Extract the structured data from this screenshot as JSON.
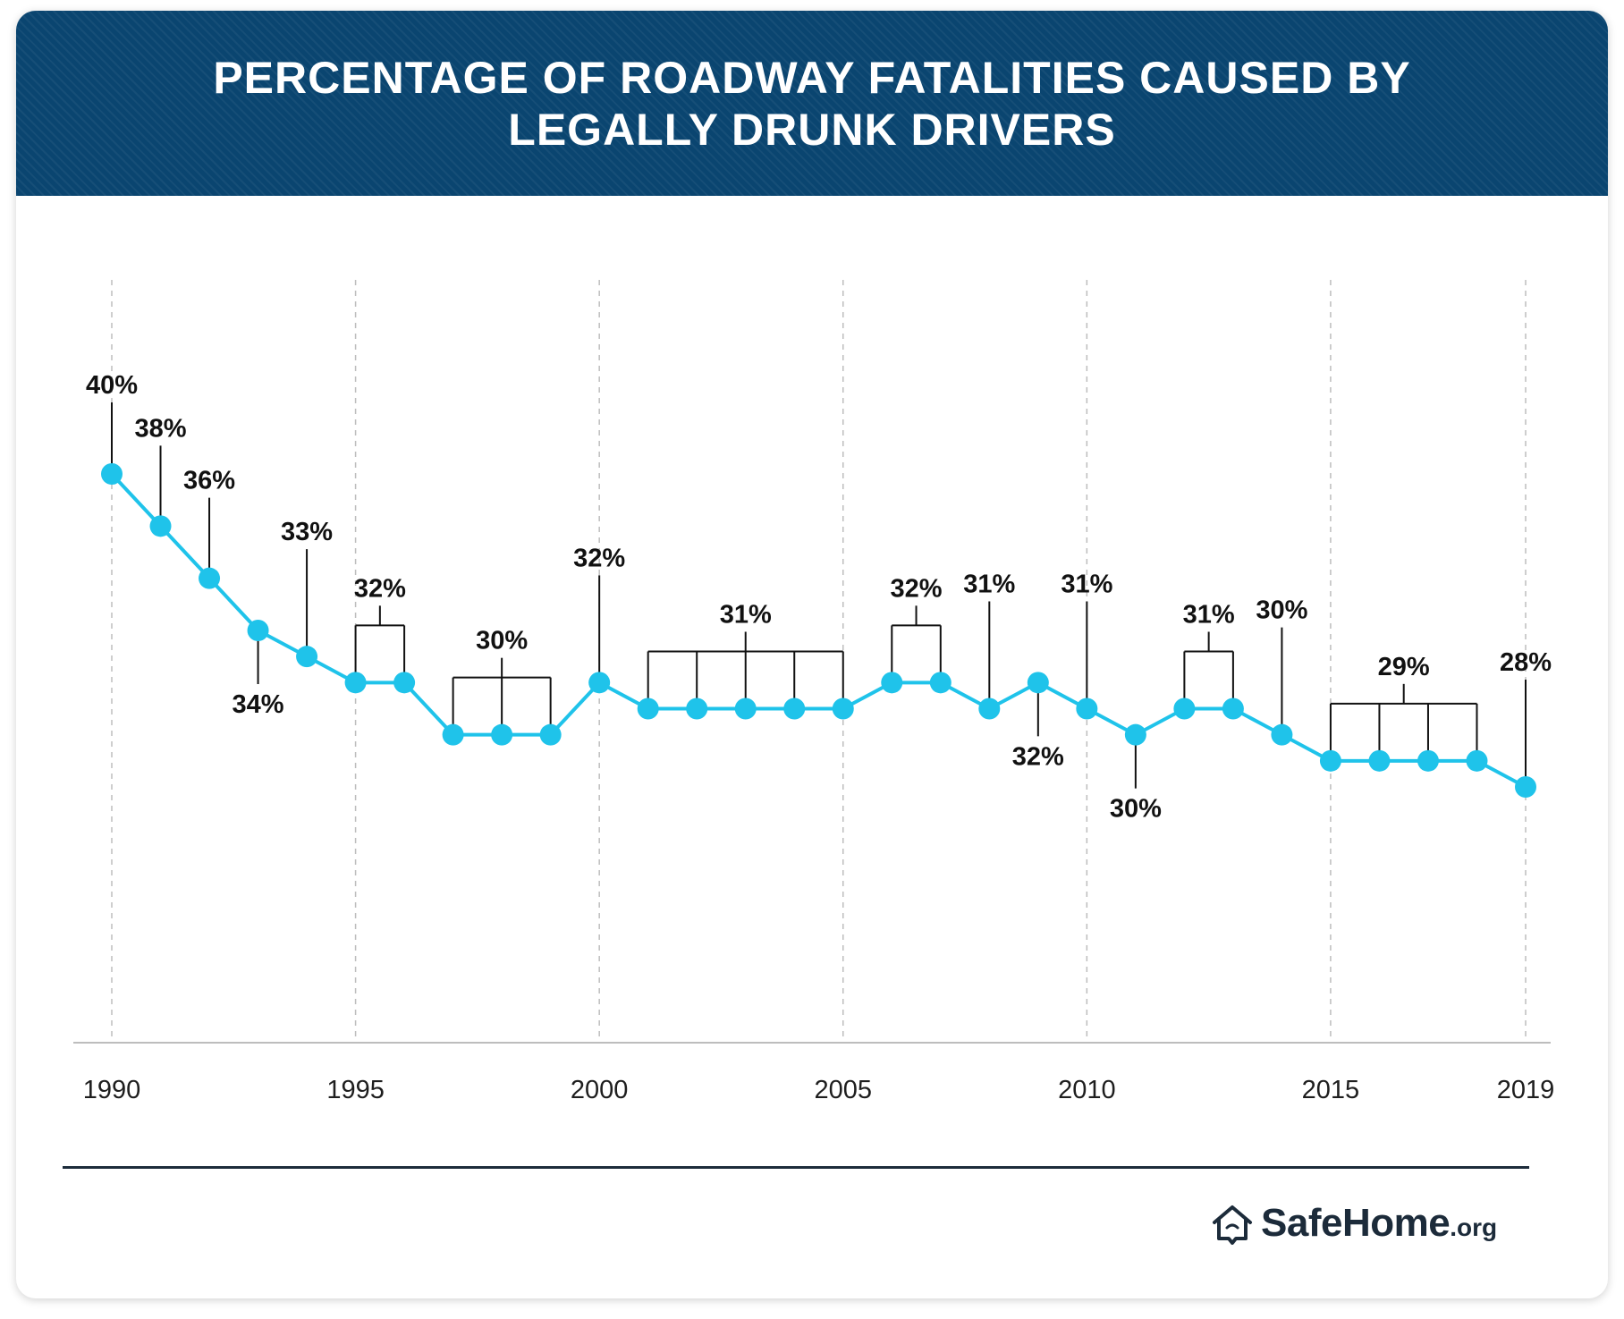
{
  "header": {
    "title": "PERCENTAGE OF ROADWAY FATALITIES CAUSED BY LEGALLY DRUNK DRIVERS"
  },
  "colors": {
    "banner": "#0a4570",
    "line": "#1fc3ea",
    "text": "#111111"
  },
  "chart_data": {
    "type": "line",
    "title": "PERCENTAGE OF ROADWAY FATALITIES CAUSED BY LEGALLY DRUNK DRIVERS",
    "x": [
      1990,
      1991,
      1992,
      1993,
      1994,
      1995,
      1996,
      1997,
      1998,
      1999,
      2000,
      2001,
      2002,
      2003,
      2004,
      2005,
      2006,
      2007,
      2008,
      2009,
      2010,
      2011,
      2012,
      2013,
      2014,
      2015,
      2016,
      2017,
      2018,
      2019
    ],
    "values": [
      40,
      38,
      36,
      34,
      33,
      32,
      32,
      30,
      30,
      30,
      32,
      31,
      31,
      31,
      31,
      31,
      32,
      32,
      31,
      32,
      31,
      30,
      31,
      31,
      30,
      29,
      29,
      29,
      29,
      28
    ],
    "xticks": [
      "1990",
      "1995",
      "2000",
      "2005",
      "2010",
      "2015",
      "2019"
    ],
    "xlabel": "",
    "ylabel": "",
    "grid": "vertical dashed at tick years",
    "annotations": [
      {
        "text": "40%",
        "years": [
          1990
        ],
        "position": "above"
      },
      {
        "text": "38%",
        "years": [
          1991
        ],
        "position": "above"
      },
      {
        "text": "36%",
        "years": [
          1992
        ],
        "position": "above"
      },
      {
        "text": "34%",
        "years": [
          1993
        ],
        "position": "below"
      },
      {
        "text": "33%",
        "years": [
          1994
        ],
        "position": "above"
      },
      {
        "text": "32%",
        "years": [
          1995,
          1996
        ],
        "position": "above"
      },
      {
        "text": "30%",
        "years": [
          1997,
          1998,
          1999
        ],
        "position": "above"
      },
      {
        "text": "32%",
        "years": [
          2000
        ],
        "position": "above"
      },
      {
        "text": "31%",
        "years": [
          2001,
          2002,
          2003,
          2004,
          2005
        ],
        "position": "above"
      },
      {
        "text": "32%",
        "years": [
          2006,
          2007
        ],
        "position": "above"
      },
      {
        "text": "31%",
        "years": [
          2008
        ],
        "position": "above"
      },
      {
        "text": "32%",
        "years": [
          2009
        ],
        "position": "below"
      },
      {
        "text": "31%",
        "years": [
          2010
        ],
        "position": "above"
      },
      {
        "text": "30%",
        "years": [
          2011
        ],
        "position": "below"
      },
      {
        "text": "31%",
        "years": [
          2012,
          2013
        ],
        "position": "above"
      },
      {
        "text": "30%",
        "years": [
          2014
        ],
        "position": "above"
      },
      {
        "text": "29%",
        "years": [
          2015,
          2016,
          2017,
          2018
        ],
        "position": "above"
      },
      {
        "text": "28%",
        "years": [
          2019
        ],
        "position": "above"
      }
    ]
  },
  "footer": {
    "logo_main": "SafeHome",
    "logo_suffix": ".org",
    "logo_icon": "house-icon"
  }
}
